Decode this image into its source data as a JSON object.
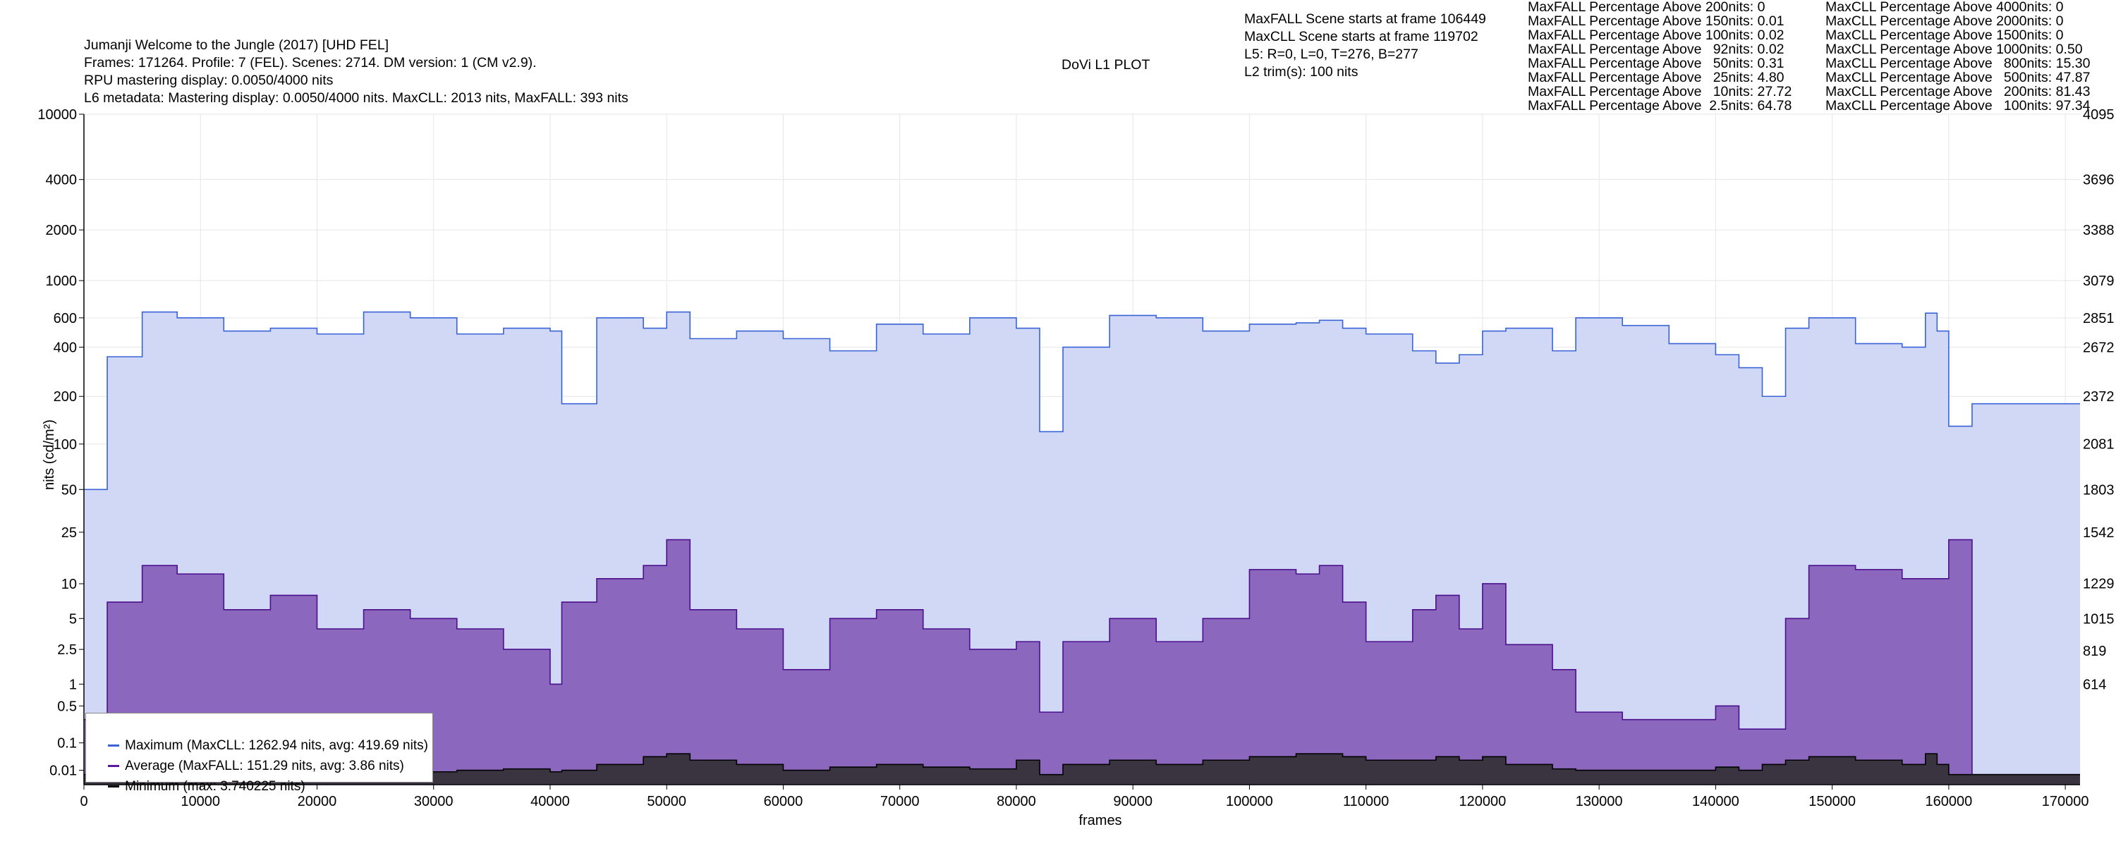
{
  "header": {
    "lines": [
      "Jumanji Welcome to the Jungle (2017) [UHD FEL]",
      "Frames: 171264. Profile: 7 (FEL). Scenes: 2714. DM version: 1 (CM v2.9).",
      "RPU mastering display: 0.0050/4000 nits",
      "L6 metadata: Mastering display: 0.0050/4000 nits. MaxCLL: 2013 nits, MaxFALL: 393 nits"
    ],
    "center_title": "DoVi L1 PLOT",
    "scene_info": [
      "MaxFALL Scene starts at frame 106449",
      "MaxCLL Scene starts at frame 119702",
      "L5: R=0, L=0, T=276, B=277",
      "L2 trim(s): 100 nits"
    ],
    "maxfall_stats": [
      "MaxFALL Percentage Above 200nits: 0",
      "MaxFALL Percentage Above 150nits: 0.01",
      "MaxFALL Percentage Above 100nits: 0.02",
      "MaxFALL Percentage Above   92nits: 0.02",
      "MaxFALL Percentage Above   50nits: 0.31",
      "MaxFALL Percentage Above   25nits: 4.80",
      "MaxFALL Percentage Above   10nits: 27.72",
      "MaxFALL Percentage Above  2.5nits: 64.78"
    ],
    "maxcll_stats": [
      "MaxCLL Percentage Above 4000nits: 0",
      "MaxCLL Percentage Above 2000nits: 0",
      "MaxCLL Percentage Above 1500nits: 0",
      "MaxCLL Percentage Above 1000nits: 0.50",
      "MaxCLL Percentage Above   800nits: 15.30",
      "MaxCLL Percentage Above   500nits: 47.87",
      "MaxCLL Percentage Above   200nits: 81.43",
      "MaxCLL Percentage Above   100nits: 97.34"
    ]
  },
  "legend": {
    "items": [
      {
        "label": "Maximum (MaxCLL: 1262.94 nits, avg: 419.69 nits)",
        "color": "#3a63d6"
      },
      {
        "label": "Average (MaxFALL: 151.29 nits, avg: 3.86 nits)",
        "color": "#5a1a9a"
      },
      {
        "label": "Minimum (max: 3.740225 nits)",
        "color": "#000000"
      }
    ]
  },
  "colors": {
    "max_line": "#3a63d6",
    "max_fill": "#d0d8f6",
    "avg_line": "#4b0f8c",
    "avg_fill": "#8b68bd",
    "min_line": "#000000",
    "min_fill": "#3a3340",
    "grid": "#e6e6e6"
  },
  "chart_data": {
    "type": "area",
    "title": "DoVi L1 PLOT",
    "xlabel": "frames",
    "ylabel": "nits (cd/m²)",
    "xlim": [
      0,
      171264
    ],
    "y_scale": "PQ (log-like)",
    "grid": true,
    "legend_position": "bottom-left",
    "x_ticks": [
      "0",
      "10000",
      "20000",
      "30000",
      "40000",
      "50000",
      "60000",
      "70000",
      "80000",
      "90000",
      "100000",
      "110000",
      "120000",
      "130000",
      "140000",
      "150000",
      "160000",
      "170000"
    ],
    "y_ticks_left": [
      "10000",
      "4000",
      "2000",
      "1000",
      "600",
      "400",
      "200",
      "100",
      "50",
      "25",
      "10",
      "5",
      "2.5",
      "1",
      "0.5",
      "0.1",
      "0.01"
    ],
    "y_ticks_right": [
      "4095",
      "3696",
      "3388",
      "3079",
      "2851",
      "2672",
      "2372",
      "2081",
      "1803",
      "1542",
      "1229",
      "1015",
      "819",
      "614"
    ],
    "x": [
      0,
      2000,
      5000,
      8000,
      12000,
      16000,
      20000,
      24000,
      28000,
      32000,
      36000,
      40000,
      41000,
      44000,
      48000,
      50000,
      52000,
      56000,
      60000,
      64000,
      68000,
      72000,
      76000,
      80000,
      82000,
      84000,
      88000,
      92000,
      96000,
      100000,
      104000,
      106000,
      108000,
      110000,
      114000,
      116000,
      118000,
      120000,
      122000,
      126000,
      128000,
      132000,
      136000,
      140000,
      142000,
      144000,
      146000,
      148000,
      152000,
      156000,
      158000,
      159000,
      160000,
      161800,
      162000,
      171264
    ],
    "series": [
      {
        "name": "Maximum",
        "values": [
          50,
          350,
          650,
          600,
          500,
          520,
          480,
          650,
          600,
          480,
          520,
          500,
          180,
          600,
          520,
          650,
          450,
          500,
          450,
          380,
          550,
          480,
          600,
          520,
          120,
          400,
          620,
          600,
          500,
          550,
          560,
          580,
          520,
          480,
          380,
          320,
          360,
          500,
          520,
          380,
          600,
          540,
          420,
          360,
          300,
          200,
          520,
          600,
          420,
          400,
          640,
          500,
          130,
          130,
          180,
          180
        ]
      },
      {
        "name": "Average",
        "values": [
          0.3,
          7,
          14,
          12,
          6,
          8,
          4,
          6,
          5,
          4,
          2.5,
          1,
          7,
          11,
          14,
          22,
          6,
          4,
          1.5,
          5,
          6,
          4,
          2.5,
          3,
          0.4,
          3,
          5,
          3,
          5,
          13,
          12,
          14,
          7,
          3,
          6,
          8,
          4,
          10,
          2.8,
          1.5,
          0.4,
          0.3,
          0.3,
          0.5,
          0.2,
          0.2,
          5,
          14,
          13,
          11,
          11,
          11,
          22,
          22,
          0.005,
          0.005
        ]
      },
      {
        "name": "Minimum",
        "values": [
          0.005,
          0.005,
          0.005,
          0.005,
          0.005,
          0.005,
          0.006,
          0.005,
          0.008,
          0.01,
          0.012,
          0.008,
          0.01,
          0.02,
          0.04,
          0.05,
          0.03,
          0.02,
          0.01,
          0.015,
          0.02,
          0.015,
          0.012,
          0.03,
          0.005,
          0.02,
          0.03,
          0.02,
          0.03,
          0.04,
          0.05,
          0.05,
          0.04,
          0.03,
          0.03,
          0.04,
          0.03,
          0.04,
          0.02,
          0.012,
          0.01,
          0.01,
          0.01,
          0.015,
          0.01,
          0.02,
          0.03,
          0.04,
          0.03,
          0.02,
          0.05,
          0.02,
          0.005,
          0.005,
          0.005,
          0.005
        ]
      }
    ]
  }
}
